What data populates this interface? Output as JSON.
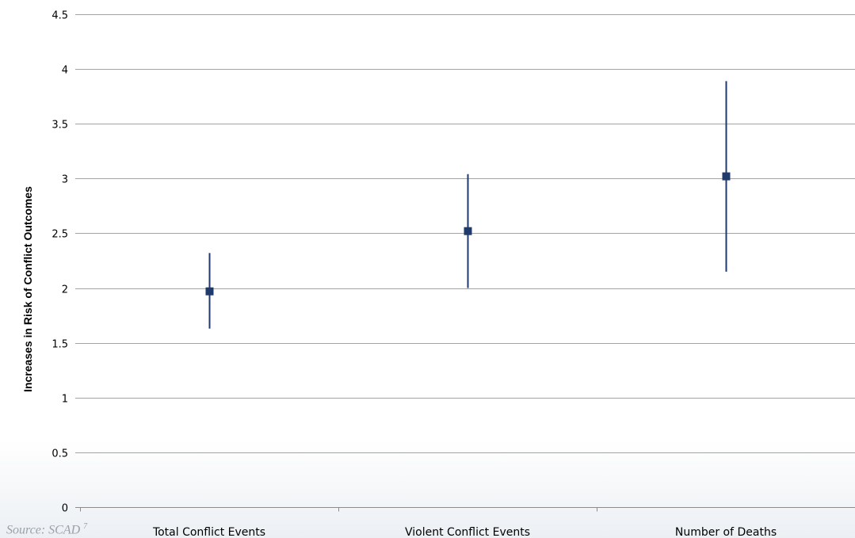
{
  "chart_data": {
    "type": "scatter",
    "ylabel": "Increases in Risk of Conflict Outcomes",
    "xlabel": "",
    "ylim": [
      0,
      4.5
    ],
    "yticks": [
      "0",
      "0.5",
      "1",
      "1.5",
      "2",
      "2.5",
      "3",
      "3.5",
      "4",
      "4.5"
    ],
    "categories": [
      "Total Conflict Events",
      "Violent Conflict Events",
      "Number of Deaths"
    ],
    "points": [
      {
        "category": "Total Conflict Events",
        "value": 1.97,
        "low": 1.63,
        "high": 2.32
      },
      {
        "category": "Violent Conflict Events",
        "value": 2.52,
        "low": 2.0,
        "high": 3.04
      },
      {
        "category": "Number of Deaths",
        "value": 3.02,
        "low": 2.15,
        "high": 3.89
      }
    ],
    "grid": true,
    "series_color": "#1f3a6b"
  },
  "source": {
    "text": "Source: SCAD",
    "footnote": "7"
  }
}
